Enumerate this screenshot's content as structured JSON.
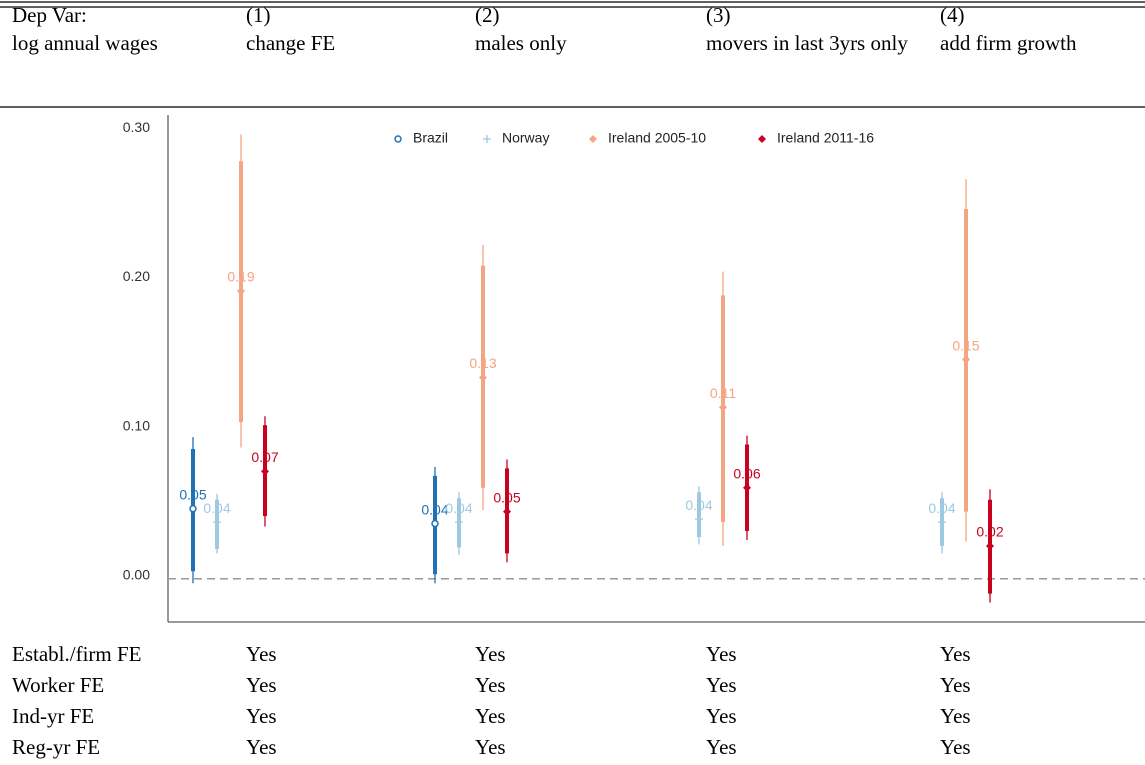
{
  "table": {
    "header": [
      [
        "Dep Var:",
        "(1)",
        "(2)",
        "(3)",
        "(4)"
      ],
      [
        "log annual wages",
        "change FE",
        "males only",
        "movers in last 3yrs only",
        "add firm growth"
      ]
    ],
    "rows": [
      [
        "Establ./firm FE",
        "Yes",
        "Yes",
        "Yes",
        "Yes"
      ],
      [
        "Worker FE",
        "Yes",
        "Yes",
        "Yes",
        "Yes"
      ],
      [
        "Ind-yr FE",
        "Yes",
        "Yes",
        "Yes",
        "Yes"
      ],
      [
        "Reg-yr FE",
        "Yes",
        "Yes",
        "Yes",
        "Yes"
      ]
    ]
  },
  "chart_data": {
    "type": "coefplot",
    "categories": [
      null,
      null,
      null,
      null
    ],
    "ylim": [
      -0.029,
      0.311
    ],
    "yticks": [
      {
        "value": 0,
        "label": "0.00"
      },
      {
        "value": 0.1,
        "label": "0.10"
      },
      {
        "value": 0.2,
        "label": "0.20"
      },
      {
        "value": 0.3,
        "label": "0.30"
      }
    ],
    "hline": 0,
    "series": [
      {
        "name": "Brazil",
        "color": "#2171b5",
        "marker": "circle",
        "values": [
          0.047,
          0.037,
          null,
          null
        ],
        "value_labels": [
          "0.05",
          "0.04",
          null,
          null
        ],
        "ci_thick_low": [
          0.005,
          0.003,
          null,
          null
        ],
        "ci_thick_high": [
          0.087,
          0.069,
          null,
          null
        ],
        "ci_thin_low": [
          -0.003,
          -0.003,
          null,
          null
        ],
        "ci_thin_high": [
          0.095,
          0.075,
          null,
          null
        ]
      },
      {
        "name": "Norway",
        "color": "#9ecae1",
        "marker": "plus",
        "values": [
          0.038,
          0.038,
          0.04,
          0.038
        ],
        "value_labels": [
          "0.04",
          "0.04",
          "0.04",
          "0.04"
        ],
        "ci_thick_low": [
          0.02,
          0.021,
          0.028,
          0.022
        ],
        "ci_thick_high": [
          0.053,
          0.054,
          0.058,
          0.054
        ],
        "ci_thin_low": [
          0.017,
          0.016,
          0.023,
          0.017
        ],
        "ci_thin_high": [
          0.057,
          0.058,
          0.062,
          0.058
        ]
      },
      {
        "name": "Ireland 2005-10",
        "color": "#f4a582",
        "marker": "diamond",
        "values": [
          0.193,
          0.135,
          0.115,
          0.147
        ],
        "value_labels": [
          "0.19",
          "0.13",
          "0.11",
          "0.15"
        ],
        "ci_thick_low": [
          0.105,
          0.061,
          0.038,
          0.045
        ],
        "ci_thick_high": [
          0.28,
          0.21,
          0.19,
          0.248
        ],
        "ci_thin_low": [
          0.088,
          0.046,
          0.022,
          0.025
        ],
        "ci_thin_high": [
          0.298,
          0.224,
          0.206,
          0.268
        ]
      },
      {
        "name": "Ireland 2011-16",
        "color": "#ca0020",
        "marker": "diamond",
        "values": [
          0.072,
          0.045,
          0.061,
          0.022
        ],
        "value_labels": [
          "0.07",
          "0.05",
          "0.06",
          "0.02"
        ],
        "ci_thick_low": [
          0.042,
          0.017,
          0.032,
          -0.01
        ],
        "ci_thick_high": [
          0.103,
          0.074,
          0.09,
          0.053
        ],
        "ci_thin_low": [
          0.035,
          0.011,
          0.026,
          -0.016
        ],
        "ci_thin_high": [
          0.109,
          0.08,
          0.096,
          0.06
        ]
      }
    ]
  }
}
